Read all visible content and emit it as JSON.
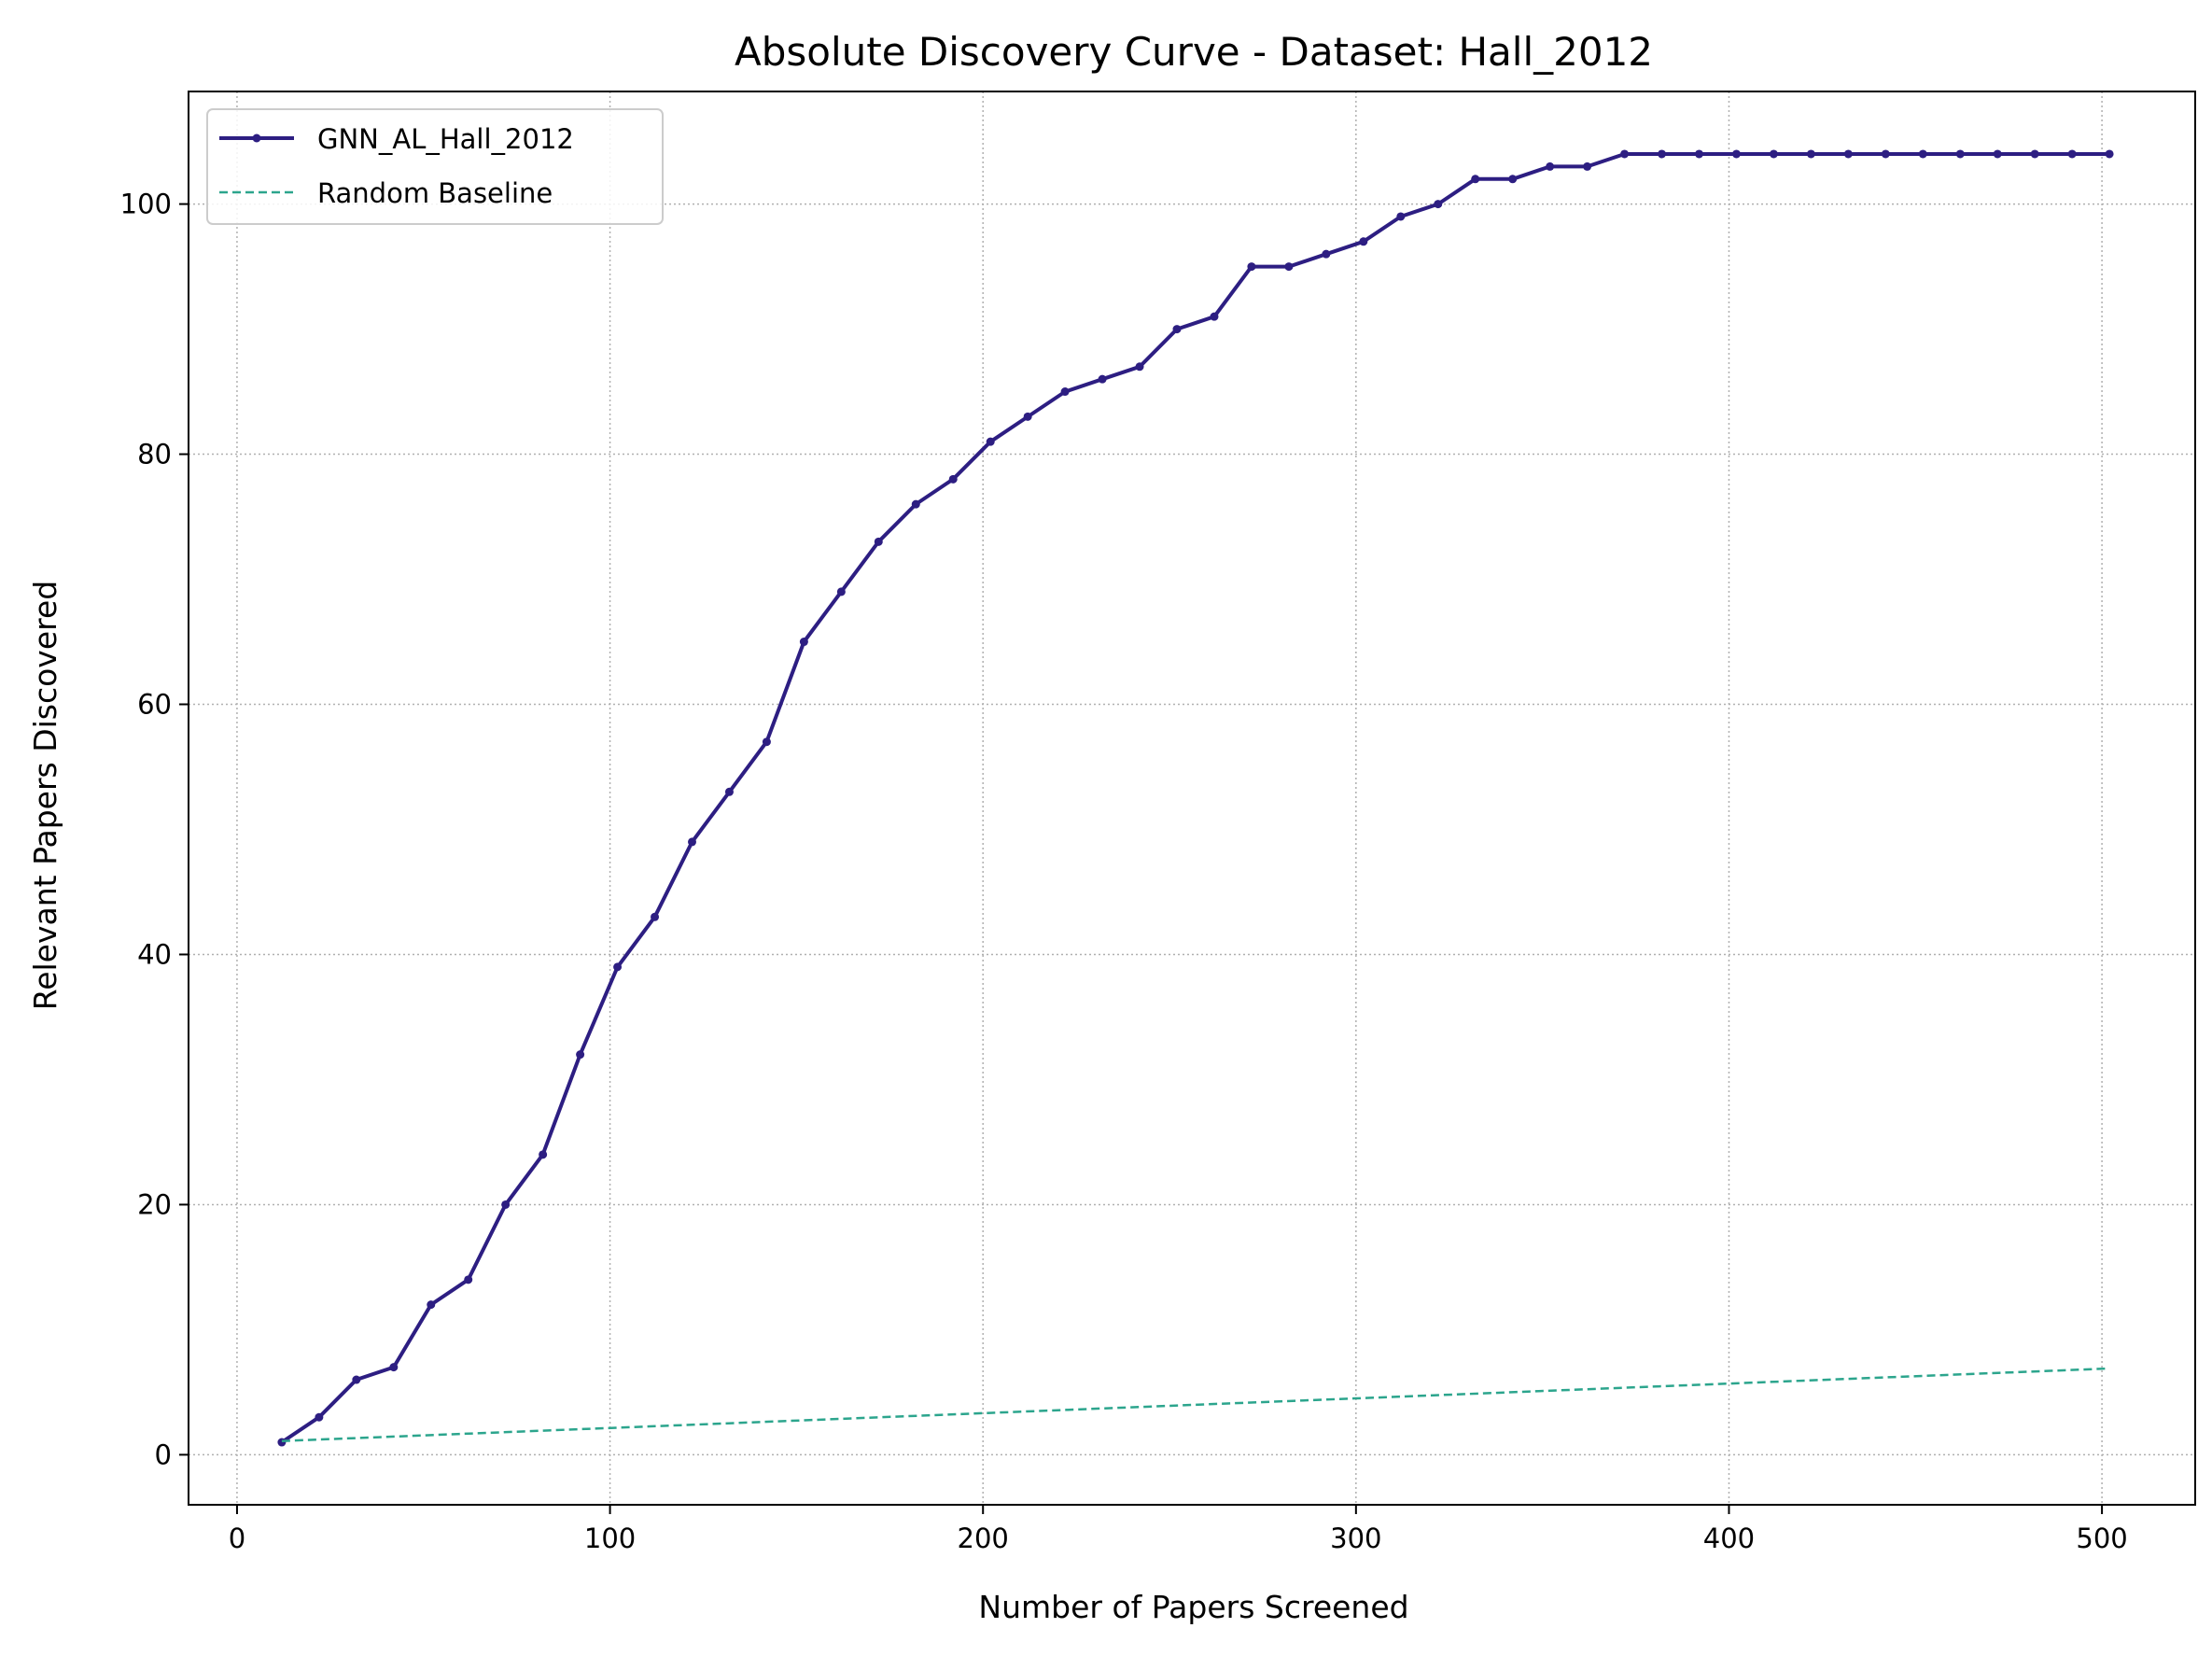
{
  "chart_data": {
    "type": "line",
    "title": "Absolute Discovery Curve - Dataset: Hall_2012",
    "xlabel": "Number of Papers Screened",
    "ylabel": "Relevant Papers Discovered",
    "xlim": [
      -13,
      525
    ],
    "ylim": [
      -4,
      109
    ],
    "xticks": [
      0,
      100,
      200,
      300,
      400,
      500
    ],
    "yticks": [
      0,
      20,
      40,
      60,
      80,
      100
    ],
    "grid": true,
    "legend_position": "top-left",
    "series": [
      {
        "name": "GNN_AL_Hall_2012",
        "color": "#2d1e82",
        "style": "solid",
        "markers": true,
        "x": [
          12,
          22,
          32,
          42,
          52,
          62,
          72,
          82,
          92,
          102,
          112,
          122,
          132,
          142,
          152,
          162,
          172,
          182,
          192,
          202,
          212,
          222,
          232,
          242,
          252,
          262,
          272,
          282,
          292,
          302,
          312,
          322,
          332,
          342,
          352,
          362,
          372,
          382,
          392,
          402,
          412,
          422,
          432,
          442,
          452,
          462,
          472,
          482,
          492,
          502
        ],
        "y": [
          1,
          3,
          6,
          7,
          12,
          14,
          20,
          24,
          32,
          39,
          43,
          49,
          53,
          57,
          65,
          69,
          73,
          76,
          78,
          81,
          83,
          85,
          86,
          87,
          90,
          91,
          95,
          95,
          96,
          97,
          99,
          100,
          102,
          102,
          103,
          103,
          104,
          104,
          104,
          104,
          104,
          104,
          104,
          104,
          104,
          104,
          104,
          104,
          104,
          104
        ]
      },
      {
        "name": "Random Baseline",
        "color": "#2ca58d",
        "style": "dashed",
        "markers": false,
        "x": [
          12,
          502
        ],
        "y": [
          1.1,
          6.9
        ]
      }
    ]
  }
}
